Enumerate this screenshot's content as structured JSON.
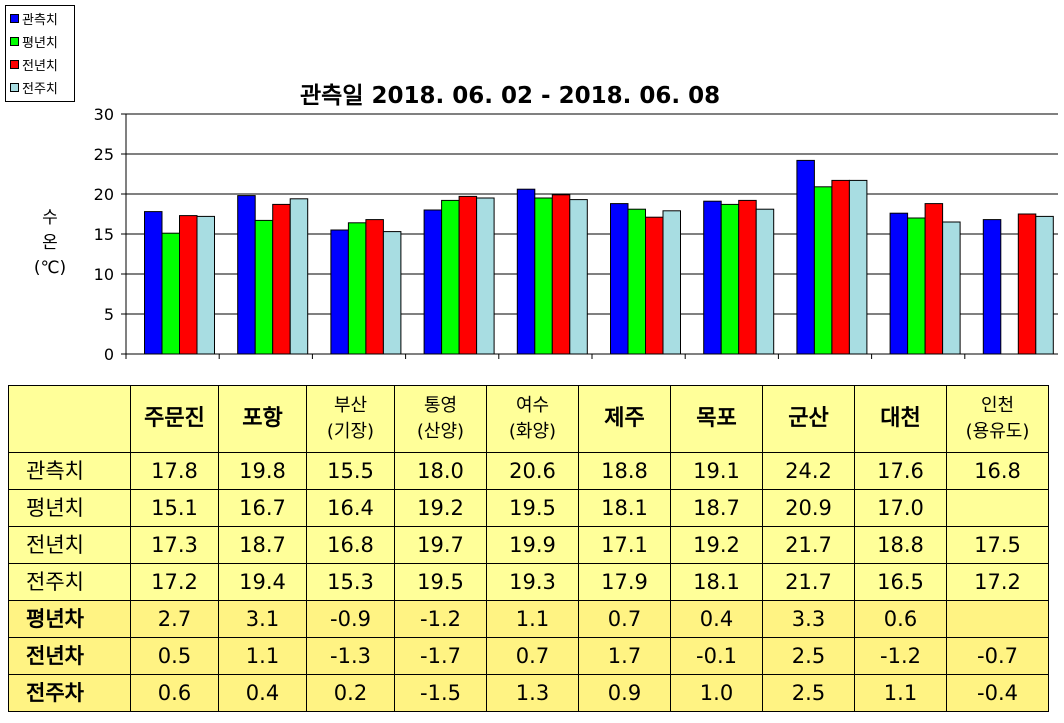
{
  "chart_data": {
    "type": "bar",
    "title": "관측일 2018. 06. 02 - 2018. 06. 08",
    "ylabel": [
      "수",
      "온",
      "(℃)"
    ],
    "ylim": [
      0,
      30
    ],
    "yticks": [
      0,
      5,
      10,
      15,
      20,
      25,
      30
    ],
    "grid": "horizontal",
    "legend_position": "top-left",
    "categories": [
      "주문진",
      "포항",
      "부산(기장)",
      "통영(산양)",
      "여수(화양)",
      "제주",
      "목포",
      "군산",
      "대천",
      "인천(용유도)"
    ],
    "series": [
      {
        "name": "관측치",
        "color": "#0000ff",
        "values": [
          17.8,
          19.8,
          15.5,
          18.0,
          20.6,
          18.8,
          19.1,
          24.2,
          17.6,
          16.8
        ]
      },
      {
        "name": "평년치",
        "color": "#00ff00",
        "values": [
          15.1,
          16.7,
          16.4,
          19.2,
          19.5,
          18.1,
          18.7,
          20.9,
          17.0,
          null
        ]
      },
      {
        "name": "전년치",
        "color": "#ff0000",
        "values": [
          17.3,
          18.7,
          16.8,
          19.7,
          19.9,
          17.1,
          19.2,
          21.7,
          18.8,
          17.5
        ]
      },
      {
        "name": "전주치",
        "color": "#a8dde2",
        "values": [
          17.2,
          19.4,
          15.3,
          19.5,
          19.3,
          17.9,
          18.1,
          21.7,
          16.5,
          17.2
        ]
      }
    ]
  },
  "table": {
    "headers": [
      {
        "lines": [
          "주문진"
        ],
        "bold": true
      },
      {
        "lines": [
          "포항"
        ],
        "bold": true
      },
      {
        "lines": [
          "부산",
          "(기장)"
        ],
        "bold": false
      },
      {
        "lines": [
          "통영",
          "(산양)"
        ],
        "bold": false
      },
      {
        "lines": [
          "여수",
          "(화양)"
        ],
        "bold": false
      },
      {
        "lines": [
          "제주"
        ],
        "bold": true
      },
      {
        "lines": [
          "목포"
        ],
        "bold": true
      },
      {
        "lines": [
          "군산"
        ],
        "bold": true
      },
      {
        "lines": [
          "대천"
        ],
        "bold": true
      },
      {
        "lines": [
          "인천",
          "(용유도)"
        ],
        "bold": false
      }
    ],
    "rows": [
      {
        "label": "관측치",
        "kind": "value",
        "values": [
          "17.8",
          "19.8",
          "15.5",
          "18.0",
          "20.6",
          "18.8",
          "19.1",
          "24.2",
          "17.6",
          "16.8"
        ]
      },
      {
        "label": "평년치",
        "kind": "value",
        "values": [
          "15.1",
          "16.7",
          "16.4",
          "19.2",
          "19.5",
          "18.1",
          "18.7",
          "20.9",
          "17.0",
          ""
        ]
      },
      {
        "label": "전년치",
        "kind": "value",
        "values": [
          "17.3",
          "18.7",
          "16.8",
          "19.7",
          "19.9",
          "17.1",
          "19.2",
          "21.7",
          "18.8",
          "17.5"
        ]
      },
      {
        "label": "전주치",
        "kind": "value",
        "values": [
          "17.2",
          "19.4",
          "15.3",
          "19.5",
          "19.3",
          "17.9",
          "18.1",
          "21.7",
          "16.5",
          "17.2"
        ]
      },
      {
        "label": "평년차",
        "kind": "diff",
        "values": [
          "2.7",
          "3.1",
          "-0.9",
          "-1.2",
          "1.1",
          "0.7",
          "0.4",
          "3.3",
          "0.6",
          ""
        ]
      },
      {
        "label": "전년차",
        "kind": "diff",
        "values": [
          "0.5",
          "1.1",
          "-1.3",
          "-1.7",
          "0.7",
          "1.7",
          "-0.1",
          "2.5",
          "-1.2",
          "-0.7"
        ]
      },
      {
        "label": "전주차",
        "kind": "diff",
        "values": [
          "0.6",
          "0.4",
          "0.2",
          "-1.5",
          "1.3",
          "0.9",
          "1.0",
          "2.5",
          "1.1",
          "-0.4"
        ]
      }
    ]
  }
}
